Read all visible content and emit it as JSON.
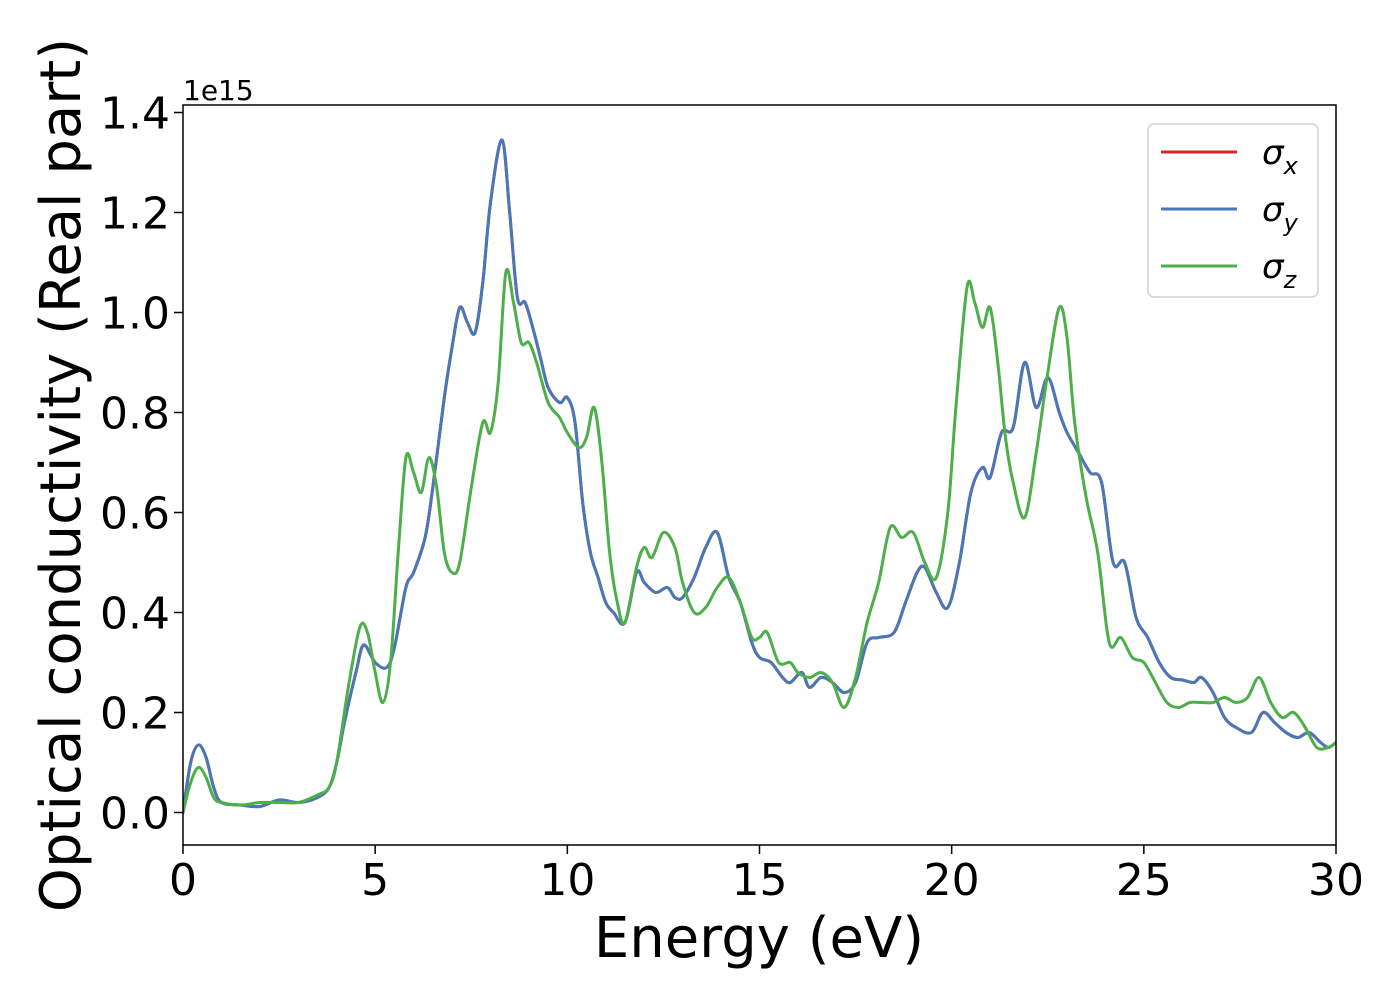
{
  "chart_data": {
    "type": "line",
    "xlabel": "Energy (eV)",
    "ylabel": "Optical conductivity (Real part)",
    "y_offset_label": "1e15",
    "xlim": [
      0,
      30
    ],
    "ylim": [
      -0.065,
      1.415
    ],
    "x_ticks": [
      0,
      5,
      10,
      15,
      20,
      25,
      30
    ],
    "x_tick_labels": [
      "0",
      "5",
      "10",
      "15",
      "20",
      "25",
      "30"
    ],
    "y_ticks": [
      0.0,
      0.2,
      0.4,
      0.6,
      0.8,
      1.0,
      1.2,
      1.4
    ],
    "y_tick_labels": [
      "0.0",
      "0.2",
      "0.4",
      "0.6",
      "0.8",
      "1.0",
      "1.2",
      "1.4"
    ],
    "grid": false,
    "legend_position": "top-right",
    "series": [
      {
        "name": "σx",
        "legend_symbol": "σ",
        "legend_subscript": "x",
        "color": "#d62728",
        "x": [
          0,
          0.2,
          0.4,
          0.6,
          0.8,
          1.0,
          1.5,
          2.0,
          2.5,
          3.0,
          3.5,
          3.8,
          4.0,
          4.2,
          4.5,
          4.7,
          5.0,
          5.3,
          5.5,
          5.8,
          6.0,
          6.3,
          6.5,
          6.8,
          7.0,
          7.2,
          7.4,
          7.6,
          7.8,
          8.0,
          8.3,
          8.5,
          8.7,
          8.9,
          9.1,
          9.3,
          9.5,
          9.8,
          10.0,
          10.2,
          10.4,
          10.6,
          10.8,
          11.0,
          11.2,
          11.5,
          11.8,
          12.0,
          12.3,
          12.6,
          12.8,
          13.0,
          13.3,
          13.6,
          13.9,
          14.2,
          14.5,
          14.8,
          15.0,
          15.3,
          15.6,
          15.8,
          16.1,
          16.3,
          16.6,
          16.9,
          17.2,
          17.5,
          17.8,
          18.1,
          18.5,
          18.8,
          19.1,
          19.3,
          19.6,
          19.9,
          20.2,
          20.5,
          20.8,
          21.0,
          21.3,
          21.6,
          21.9,
          22.2,
          22.5,
          22.8,
          23.0,
          23.3,
          23.6,
          23.9,
          24.2,
          24.5,
          24.8,
          25.1,
          25.4,
          25.7,
          26.0,
          26.3,
          26.5,
          26.8,
          27.1,
          27.4,
          27.8,
          28.1,
          28.4,
          28.7,
          29.0,
          29.3,
          29.6,
          29.8,
          30.0
        ],
        "y": [
          0.0,
          0.1,
          0.135,
          0.11,
          0.05,
          0.02,
          0.015,
          0.012,
          0.025,
          0.02,
          0.03,
          0.05,
          0.1,
          0.18,
          0.28,
          0.335,
          0.3,
          0.29,
          0.33,
          0.45,
          0.48,
          0.55,
          0.65,
          0.83,
          0.93,
          1.01,
          0.98,
          0.96,
          1.06,
          1.22,
          1.345,
          1.2,
          1.03,
          1.02,
          0.97,
          0.91,
          0.85,
          0.82,
          0.83,
          0.78,
          0.62,
          0.52,
          0.47,
          0.42,
          0.4,
          0.38,
          0.48,
          0.46,
          0.44,
          0.45,
          0.43,
          0.43,
          0.47,
          0.53,
          0.56,
          0.47,
          0.42,
          0.34,
          0.31,
          0.3,
          0.27,
          0.26,
          0.28,
          0.25,
          0.27,
          0.26,
          0.24,
          0.26,
          0.34,
          0.35,
          0.36,
          0.42,
          0.48,
          0.49,
          0.44,
          0.41,
          0.5,
          0.64,
          0.69,
          0.67,
          0.76,
          0.77,
          0.9,
          0.81,
          0.87,
          0.8,
          0.76,
          0.72,
          0.68,
          0.66,
          0.5,
          0.5,
          0.39,
          0.35,
          0.3,
          0.27,
          0.265,
          0.26,
          0.27,
          0.24,
          0.19,
          0.17,
          0.16,
          0.2,
          0.18,
          0.16,
          0.15,
          0.16,
          0.14,
          0.13,
          0.14
        ]
      },
      {
        "name": "σy",
        "legend_symbol": "σ",
        "legend_subscript": "y",
        "color": "#4878b8",
        "x": [
          0,
          0.2,
          0.4,
          0.6,
          0.8,
          1.0,
          1.5,
          2.0,
          2.5,
          3.0,
          3.5,
          3.8,
          4.0,
          4.2,
          4.5,
          4.7,
          5.0,
          5.3,
          5.5,
          5.8,
          6.0,
          6.3,
          6.5,
          6.8,
          7.0,
          7.2,
          7.4,
          7.6,
          7.8,
          8.0,
          8.3,
          8.5,
          8.7,
          8.9,
          9.1,
          9.3,
          9.5,
          9.8,
          10.0,
          10.2,
          10.4,
          10.6,
          10.8,
          11.0,
          11.2,
          11.5,
          11.8,
          12.0,
          12.3,
          12.6,
          12.8,
          13.0,
          13.3,
          13.6,
          13.9,
          14.2,
          14.5,
          14.8,
          15.0,
          15.3,
          15.6,
          15.8,
          16.1,
          16.3,
          16.6,
          16.9,
          17.2,
          17.5,
          17.8,
          18.1,
          18.5,
          18.8,
          19.1,
          19.3,
          19.6,
          19.9,
          20.2,
          20.5,
          20.8,
          21.0,
          21.3,
          21.6,
          21.9,
          22.2,
          22.5,
          22.8,
          23.0,
          23.3,
          23.6,
          23.9,
          24.2,
          24.5,
          24.8,
          25.1,
          25.4,
          25.7,
          26.0,
          26.3,
          26.5,
          26.8,
          27.1,
          27.4,
          27.8,
          28.1,
          28.4,
          28.7,
          29.0,
          29.3,
          29.6,
          29.8,
          30.0
        ],
        "y": [
          0.0,
          0.1,
          0.135,
          0.11,
          0.05,
          0.02,
          0.015,
          0.012,
          0.025,
          0.02,
          0.03,
          0.05,
          0.1,
          0.18,
          0.28,
          0.335,
          0.3,
          0.29,
          0.33,
          0.45,
          0.48,
          0.55,
          0.65,
          0.83,
          0.93,
          1.01,
          0.98,
          0.96,
          1.06,
          1.22,
          1.345,
          1.2,
          1.03,
          1.02,
          0.97,
          0.91,
          0.85,
          0.82,
          0.83,
          0.78,
          0.62,
          0.52,
          0.47,
          0.42,
          0.4,
          0.38,
          0.48,
          0.46,
          0.44,
          0.45,
          0.43,
          0.43,
          0.47,
          0.53,
          0.56,
          0.47,
          0.42,
          0.34,
          0.31,
          0.3,
          0.27,
          0.26,
          0.28,
          0.25,
          0.27,
          0.26,
          0.24,
          0.26,
          0.34,
          0.35,
          0.36,
          0.42,
          0.48,
          0.49,
          0.44,
          0.41,
          0.5,
          0.64,
          0.69,
          0.67,
          0.76,
          0.77,
          0.9,
          0.81,
          0.87,
          0.8,
          0.76,
          0.72,
          0.68,
          0.66,
          0.5,
          0.5,
          0.39,
          0.35,
          0.3,
          0.27,
          0.265,
          0.26,
          0.27,
          0.24,
          0.19,
          0.17,
          0.16,
          0.2,
          0.18,
          0.16,
          0.15,
          0.16,
          0.14,
          0.13,
          0.14
        ]
      },
      {
        "name": "σz",
        "legend_symbol": "σ",
        "legend_subscript": "z",
        "color": "#4daf4a",
        "x": [
          0,
          0.2,
          0.4,
          0.6,
          0.8,
          1.0,
          1.5,
          2.0,
          2.5,
          3.0,
          3.5,
          3.8,
          4.0,
          4.3,
          4.6,
          4.8,
          5.0,
          5.2,
          5.4,
          5.6,
          5.8,
          6.0,
          6.2,
          6.4,
          6.6,
          6.8,
          7.0,
          7.2,
          7.5,
          7.8,
          8.0,
          8.2,
          8.4,
          8.6,
          8.8,
          9.0,
          9.2,
          9.5,
          9.8,
          10.0,
          10.3,
          10.5,
          10.7,
          10.9,
          11.1,
          11.3,
          11.5,
          11.8,
          12.0,
          12.2,
          12.5,
          12.8,
          13.0,
          13.3,
          13.6,
          13.9,
          14.2,
          14.5,
          14.8,
          15.0,
          15.2,
          15.5,
          15.8,
          16.0,
          16.3,
          16.6,
          16.9,
          17.2,
          17.5,
          17.8,
          18.1,
          18.4,
          18.7,
          19.0,
          19.3,
          19.6,
          19.9,
          20.1,
          20.4,
          20.6,
          20.8,
          21.0,
          21.2,
          21.4,
          21.6,
          21.9,
          22.2,
          22.5,
          22.8,
          23.0,
          23.2,
          23.5,
          23.8,
          24.1,
          24.4,
          24.7,
          25.0,
          25.3,
          25.6,
          25.9,
          26.2,
          26.5,
          26.8,
          27.1,
          27.4,
          27.7,
          28.0,
          28.3,
          28.6,
          28.9,
          29.2,
          29.5,
          29.8,
          30.0
        ],
        "y": [
          0.0,
          0.06,
          0.09,
          0.07,
          0.03,
          0.02,
          0.015,
          0.02,
          0.02,
          0.02,
          0.035,
          0.05,
          0.1,
          0.25,
          0.37,
          0.36,
          0.28,
          0.22,
          0.3,
          0.52,
          0.71,
          0.68,
          0.64,
          0.71,
          0.65,
          0.52,
          0.48,
          0.5,
          0.65,
          0.78,
          0.76,
          0.86,
          1.08,
          1.02,
          0.94,
          0.94,
          0.9,
          0.82,
          0.79,
          0.76,
          0.73,
          0.75,
          0.81,
          0.7,
          0.52,
          0.42,
          0.38,
          0.49,
          0.53,
          0.51,
          0.56,
          0.53,
          0.46,
          0.4,
          0.41,
          0.45,
          0.47,
          0.42,
          0.35,
          0.35,
          0.36,
          0.3,
          0.3,
          0.28,
          0.27,
          0.28,
          0.26,
          0.21,
          0.27,
          0.38,
          0.46,
          0.57,
          0.55,
          0.56,
          0.5,
          0.47,
          0.6,
          0.8,
          1.05,
          1.02,
          0.97,
          1.01,
          0.9,
          0.75,
          0.66,
          0.59,
          0.72,
          0.88,
          1.01,
          0.95,
          0.78,
          0.63,
          0.52,
          0.34,
          0.35,
          0.31,
          0.3,
          0.26,
          0.22,
          0.21,
          0.22,
          0.22,
          0.22,
          0.23,
          0.22,
          0.23,
          0.27,
          0.22,
          0.19,
          0.2,
          0.17,
          0.13,
          0.13,
          0.14
        ]
      }
    ]
  }
}
